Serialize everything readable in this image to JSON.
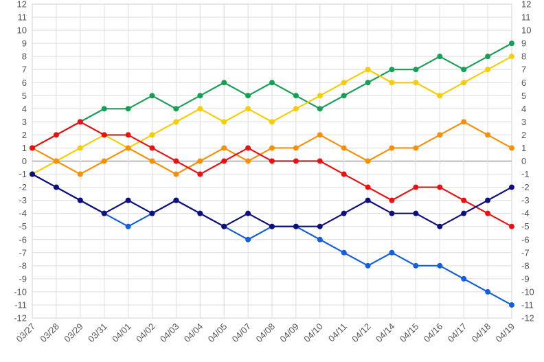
{
  "chart_data": {
    "type": "line",
    "title": "",
    "xlabel": "",
    "ylabel": "",
    "categories": [
      "03/27",
      "03/28",
      "03/29",
      "03/31",
      "04/01",
      "04/02",
      "04/03",
      "04/04",
      "04/05",
      "04/07",
      "04/08",
      "04/09",
      "04/10",
      "04/11",
      "04/12",
      "04/14",
      "04/15",
      "04/16",
      "04/17",
      "04/18",
      "04/19"
    ],
    "ylim": [
      -12,
      12
    ],
    "yticks": [
      12,
      11,
      10,
      9,
      8,
      7,
      6,
      5,
      4,
      3,
      2,
      1,
      0,
      -1,
      -2,
      -3,
      -4,
      -5,
      -6,
      -7,
      -8,
      -9,
      -10,
      -11,
      -12
    ],
    "grid": true,
    "legend": "none",
    "series": [
      {
        "color": "#1a9e57",
        "values": [
          1,
          2,
          3,
          4,
          4,
          5,
          4,
          5,
          6,
          5,
          6,
          5,
          4,
          5,
          6,
          7,
          7,
          8,
          7,
          8,
          9
        ]
      },
      {
        "color": "#f5cc0a",
        "values": [
          -1,
          0,
          1,
          2,
          1,
          2,
          3,
          4,
          3,
          4,
          3,
          4,
          5,
          6,
          7,
          6,
          6,
          5,
          6,
          7,
          8
        ]
      },
      {
        "color": "#f5900a",
        "values": [
          1,
          0,
          -1,
          0,
          1,
          0,
          -1,
          0,
          1,
          0,
          1,
          1,
          2,
          1,
          0,
          1,
          1,
          2,
          3,
          2,
          1
        ]
      },
      {
        "color": "#e31414",
        "values": [
          1,
          2,
          3,
          2,
          2,
          1,
          0,
          -1,
          0,
          1,
          0,
          0,
          0,
          -1,
          -2,
          -3,
          -2,
          -2,
          -3,
          -4,
          -5
        ]
      },
      {
        "color": "#1560d4",
        "values": [
          -1,
          -2,
          -3,
          -4,
          -5,
          -4,
          -3,
          -4,
          -5,
          -6,
          -5,
          -5,
          -6,
          -7,
          -8,
          -7,
          -8,
          -8,
          -9,
          -10,
          -11
        ]
      },
      {
        "color": "#0f0f7a",
        "values": [
          -1,
          -2,
          -3,
          -4,
          -3,
          -4,
          -3,
          -4,
          -5,
          -4,
          -5,
          -5,
          -5,
          -4,
          -3,
          -4,
          -4,
          -5,
          -4,
          -3,
          -2
        ]
      }
    ]
  }
}
